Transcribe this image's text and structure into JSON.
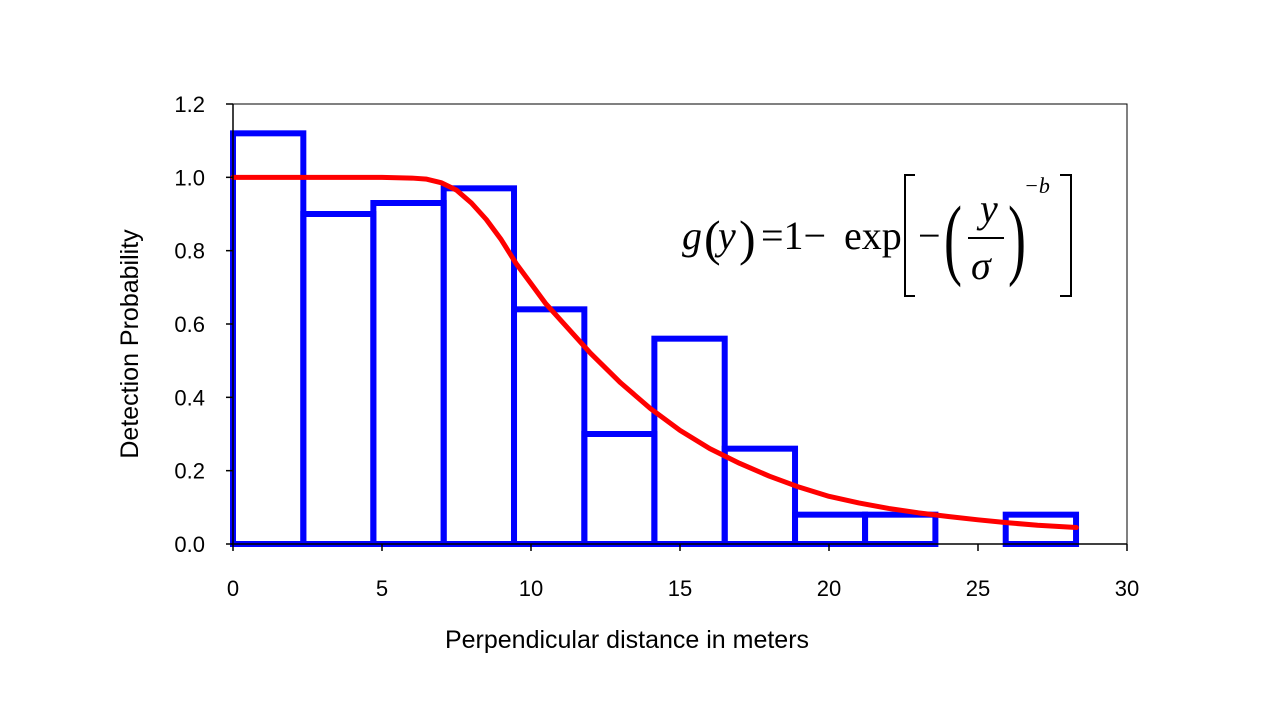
{
  "chart_data": {
    "type": "bar",
    "xlabel": "Perpendicular distance in meters",
    "ylabel": "Detection Probability",
    "xlim": [
      0,
      30
    ],
    "ylim": [
      0,
      1.2
    ],
    "x_ticks": [
      "0",
      "5",
      "10",
      "15",
      "20",
      "25",
      "30"
    ],
    "y_ticks": [
      "0.0",
      "0.2",
      "0.4",
      "0.6",
      "0.8",
      "1.0",
      "1.2"
    ],
    "grid": false,
    "histogram": {
      "bin_edges": [
        0,
        2.36,
        4.71,
        7.07,
        9.43,
        11.79,
        14.14,
        16.5,
        18.86,
        21.21,
        23.57,
        25.93,
        28.29
      ],
      "values": [
        1.12,
        0.9,
        0.93,
        0.97,
        0.64,
        0.3,
        0.56,
        0.26,
        0.08,
        0.08,
        0.0,
        0.08
      ],
      "color": "#0000ff"
    },
    "curve": {
      "x": [
        0,
        2,
        4,
        5,
        6,
        6.5,
        7,
        7.5,
        8,
        8.5,
        9,
        9.5,
        10,
        10.5,
        11,
        11.5,
        12,
        13,
        14,
        15,
        16,
        17,
        18,
        19,
        20,
        21,
        22,
        23,
        24,
        25,
        26,
        27,
        28.3
      ],
      "y": [
        1.0,
        1.0,
        1.0,
        1.0,
        0.998,
        0.995,
        0.985,
        0.965,
        0.93,
        0.885,
        0.83,
        0.765,
        0.71,
        0.655,
        0.61,
        0.565,
        0.52,
        0.44,
        0.37,
        0.31,
        0.26,
        0.22,
        0.185,
        0.155,
        0.13,
        0.112,
        0.097,
        0.085,
        0.075,
        0.066,
        0.058,
        0.051,
        0.045
      ],
      "color": "#ff0000"
    },
    "annotation": {
      "g": "g",
      "y": "y",
      "equals_one_minus": "=1−",
      "exp": "exp",
      "minus": "−",
      "sigma": "σ",
      "exponent": "−b"
    }
  }
}
